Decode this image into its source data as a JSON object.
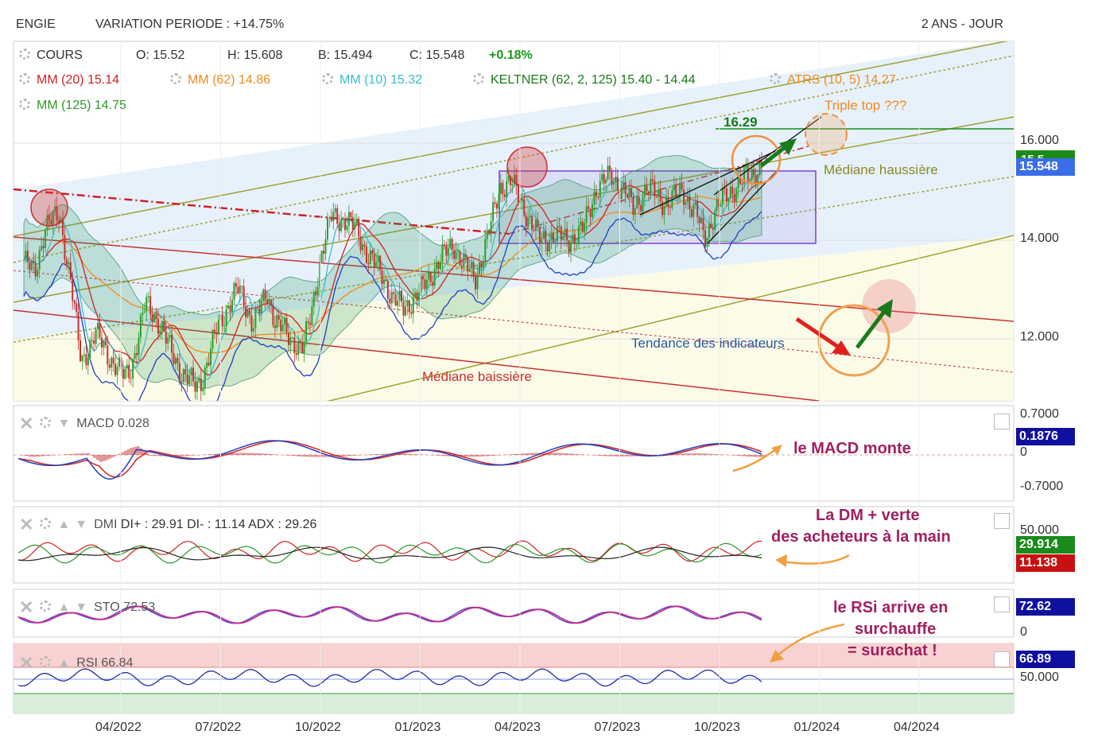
{
  "header": {
    "ticker": "ENGIE",
    "variation": "VARIATION PERIODE : +14.75%",
    "period": "2 ANS - JOUR"
  },
  "legend": {
    "cours": "COURS",
    "open": "O: 15.52",
    "high": "H: 15.608",
    "low": "B: 15.494",
    "close": "C: 15.548",
    "change": "+0.18%",
    "mm20": "MM (20) 15.14",
    "mm62": "MM (62) 14.86",
    "mm10": "MM (10) 15.32",
    "keltner": "KELTNER (62, 2, 125) 15.40 - 14.44",
    "atrs": "ATRS (10, 5) 14.27",
    "mm125": "MM (125) 14.75"
  },
  "annotations": {
    "triple_top": "Triple top ???",
    "level": "16.29",
    "mediane_haussiere": "Médiane haussière",
    "mediane_baissiere": "Médiane baissière",
    "tendance": "Tendance des indicateurs"
  },
  "price_axis": {
    "ticks": [
      "16.000",
      "14.000",
      "12.000"
    ],
    "last": "15.548",
    "covered": "15.5"
  },
  "macd": {
    "label": "MACD 0.028",
    "ticks": [
      "0.7000",
      "0",
      "-0.7000"
    ],
    "last": "0.1876",
    "note": "le MACD monte"
  },
  "dmi": {
    "label": "DMI",
    "values": "DI+ : 29.91 DI- : 11.14 ADX : 29.26",
    "tick": "50.000",
    "diplus": "29.914",
    "diminus": "11.138",
    "note_line1": "La DM + verte",
    "note_line2": "des acheteurs à la main"
  },
  "sto": {
    "label": "STO 72.53",
    "tick": "0",
    "last": "72.62"
  },
  "rsi": {
    "label": "RSI 66.84",
    "tick": "50.000",
    "last": "66.89",
    "note_line1": "le RSi arrive en",
    "note_line2": "surchauffe",
    "note_line3": "= surachat !"
  },
  "x_axis": {
    "labels": [
      "04/2022",
      "07/2022",
      "10/2022",
      "01/2023",
      "04/2023",
      "07/2023",
      "10/2023",
      "01/2024",
      "04/2024"
    ]
  },
  "colors": {
    "mm20": "#d42020",
    "mm62": "#f08a20",
    "mm10": "#3bbccc",
    "keltner": "#1a7a1a",
    "atrs": "#f08a20",
    "mm125": "#2a9a2a",
    "change": "#1a9a1a",
    "last_price_bg": "#3a6ee8",
    "green_tag": "#1a8a1a",
    "red_tag": "#c81010",
    "navy_tag": "#1010a0",
    "note": "#a02060"
  },
  "chart_data": {
    "type": "candlestick",
    "x_labels": [
      "04/2022",
      "07/2022",
      "10/2022",
      "01/2023",
      "04/2023",
      "07/2023",
      "10/2023",
      "01/2024",
      "04/2024"
    ],
    "y_ticks": [
      16,
      14,
      12
    ],
    "close_path": [
      [
        0,
        13.6
      ],
      [
        0.3,
        13.3
      ],
      [
        0.6,
        14.3
      ],
      [
        1,
        14.5
      ],
      [
        1.3,
        13.2
      ],
      [
        1.6,
        11.5
      ],
      [
        2,
        12.1
      ],
      [
        2.4,
        11.6
      ],
      [
        2.8,
        11.2
      ],
      [
        3,
        11.4
      ],
      [
        3.4,
        12.7
      ],
      [
        3.8,
        12.3
      ],
      [
        4,
        11.9
      ],
      [
        4.4,
        11.3
      ],
      [
        4.8,
        11.0
      ],
      [
        5,
        11.2
      ],
      [
        5.4,
        12.2
      ],
      [
        5.8,
        12.8
      ],
      [
        6,
        13.0
      ],
      [
        6.4,
        12.3
      ],
      [
        6.8,
        12.9
      ],
      [
        7,
        12.4
      ],
      [
        7.4,
        12.0
      ],
      [
        7.8,
        11.8
      ],
      [
        8,
        12.4
      ],
      [
        8.3,
        13.7
      ],
      [
        8.6,
        14.5
      ],
      [
        9,
        14.4
      ],
      [
        9.3,
        14.2
      ],
      [
        9.6,
        13.7
      ],
      [
        10,
        13.3
      ],
      [
        10.3,
        12.8
      ],
      [
        10.6,
        12.6
      ],
      [
        11,
        12.9
      ],
      [
        11.3,
        13.2
      ],
      [
        11.6,
        13.6
      ],
      [
        12,
        13.9
      ],
      [
        12.3,
        13.5
      ],
      [
        12.6,
        13.2
      ],
      [
        13,
        14.2
      ],
      [
        13.3,
        15.1
      ],
      [
        13.6,
        15.2
      ],
      [
        14,
        14.6
      ],
      [
        14.4,
        14.0
      ],
      [
        14.8,
        14.1
      ],
      [
        15.2,
        14.0
      ],
      [
        15.6,
        14.2
      ],
      [
        16,
        15.1
      ],
      [
        16.4,
        15.3
      ],
      [
        16.8,
        15.0
      ],
      [
        17,
        14.6
      ],
      [
        17.4,
        15.1
      ],
      [
        17.8,
        14.8
      ],
      [
        18,
        14.8
      ],
      [
        18.4,
        15.0
      ],
      [
        18.8,
        14.5
      ],
      [
        19,
        14.0
      ],
      [
        19.3,
        14.6
      ],
      [
        19.6,
        14.9
      ],
      [
        20,
        15.2
      ],
      [
        20.3,
        15.3
      ],
      [
        20.6,
        15.55
      ]
    ],
    "macd_last": 0.1876,
    "dmi_last": {
      "di_plus": 29.914,
      "di_minus": 11.138
    },
    "sto_last": 72.62,
    "rsi_last": 66.89
  }
}
